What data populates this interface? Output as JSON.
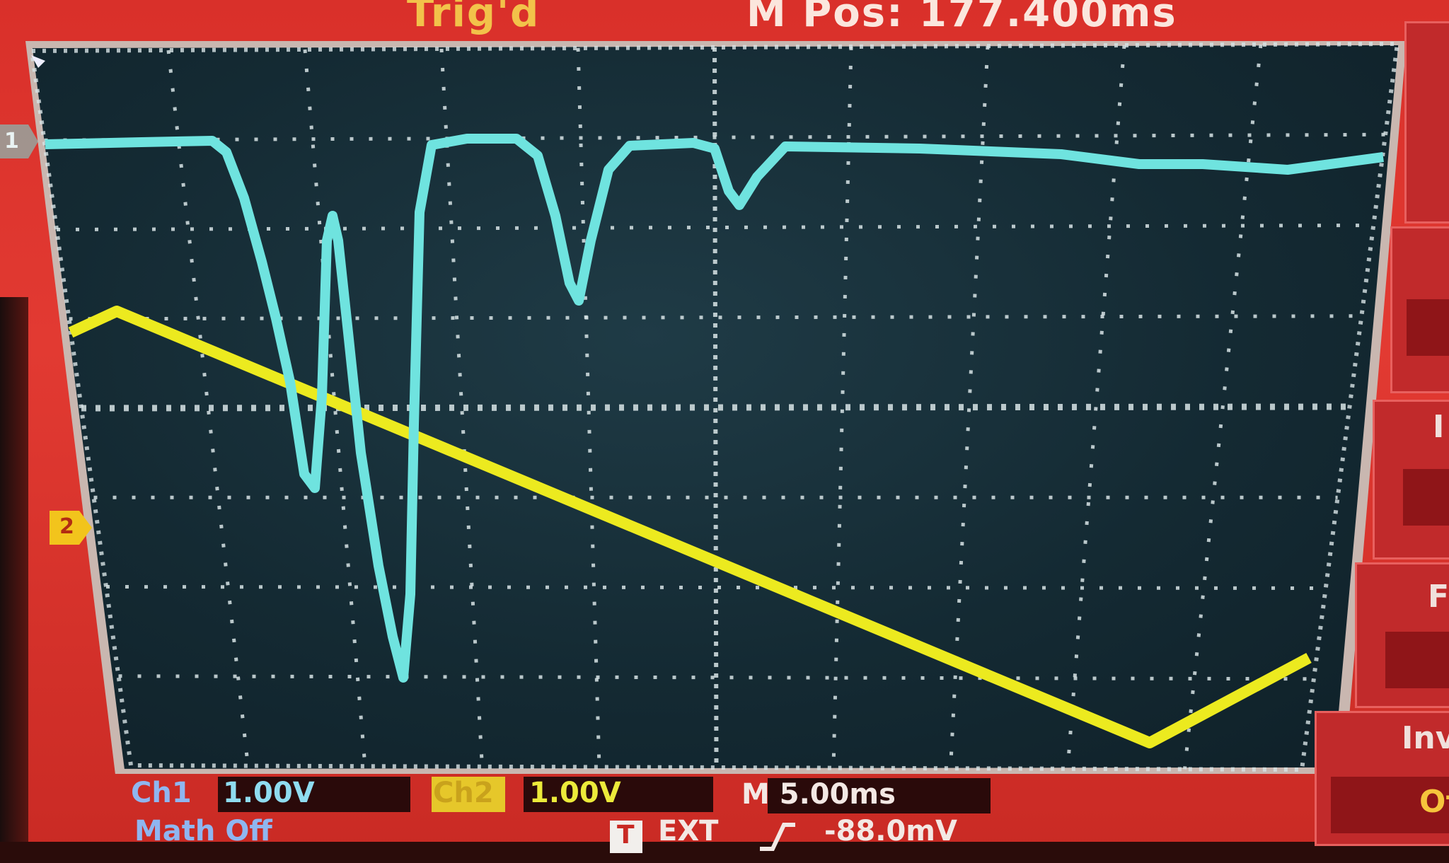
{
  "header": {
    "trigger_status": "Trig'd",
    "horizontal_position": "M Pos: 177.400ms"
  },
  "channel_markers": {
    "ch1": "1",
    "ch2": "2"
  },
  "bottom": {
    "ch1_label": "Ch1",
    "ch1_scale": "1.00V",
    "ch2_label": "Ch2",
    "ch2_scale": "1.00V",
    "timebase": "M 5.00ms",
    "math_status": "Math Off",
    "trigger_source_icon": "T",
    "trigger_source": "EXT",
    "trigger_slope": "rising-edge-icon",
    "trigger_level": "-88.0mV"
  },
  "side_menu": {
    "partial_label_1": "I",
    "partial_label_2": "F",
    "partial_label_3": "Inv",
    "partial_label_4": "Of"
  },
  "colors": {
    "ch1_trace": "#6fe3df",
    "ch2_trace": "#ecea1f",
    "bezel": "#e23a32",
    "screen": "#142a33",
    "grid": "#d8e4e6"
  }
}
